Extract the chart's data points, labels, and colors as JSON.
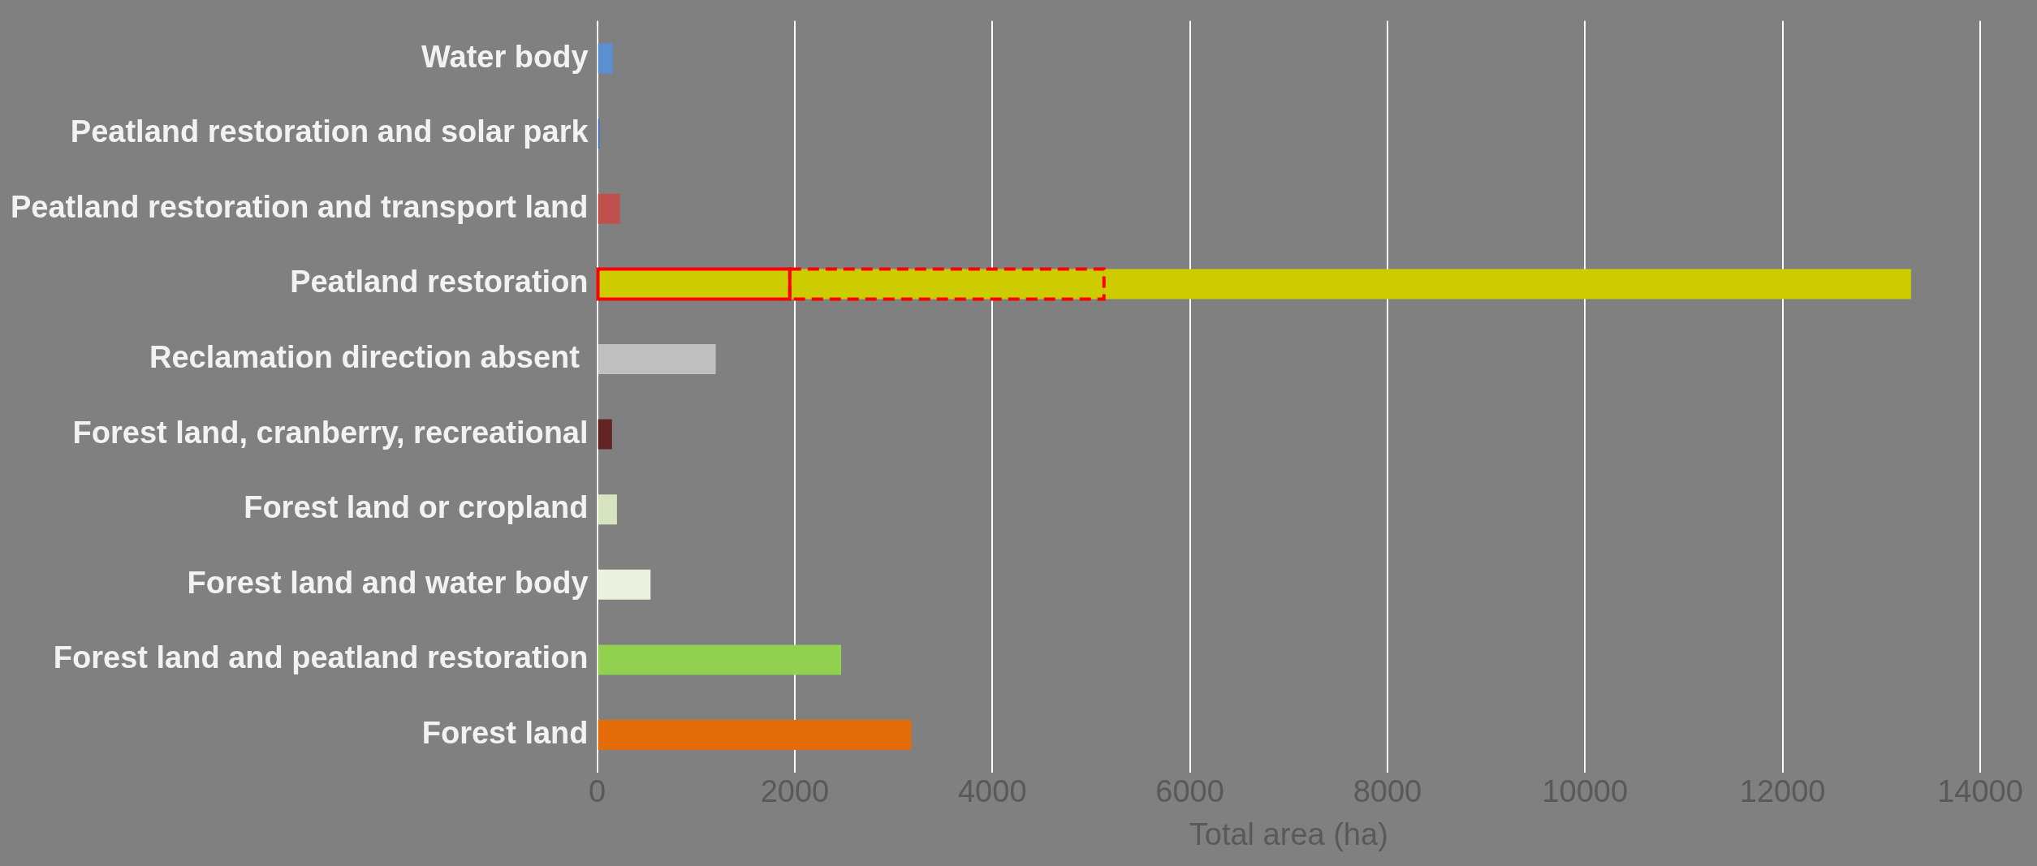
{
  "chart_data": {
    "type": "bar",
    "orientation": "horizontal",
    "stacked": true,
    "xlabel": "Total area (ha)",
    "categories": [
      "Water body",
      "Peatland restoration and solar park",
      "Peatland restoration and transport land",
      "Peatland restoration",
      "Reclamation direction absent ",
      "Forest land, cranberry, recreational",
      "Forest land or cropland",
      "Forest land and water body",
      "Forest land and peatland restoration",
      "Forest land"
    ],
    "series": [
      {
        "line_style": "solid",
        "colors": [
          "#cccc00",
          "#cccc00",
          "#cccc00",
          "#cccc00",
          "#cccc00",
          "#cccc00",
          "#cccc00",
          "#cccc00",
          "#cccc00",
          "#cccc00"
        ],
        "values": [
          null,
          null,
          null,
          1950,
          null,
          null,
          null,
          null,
          null,
          null
        ]
      },
      {
        "line_style": "dashed",
        "colors": [
          "#cccc00",
          "#cccc00",
          "#cccc00",
          "#cccc00",
          "#cccc00",
          "#cccc00",
          "#cccc00",
          "#cccc00",
          "#cccc00",
          "#cccc00"
        ],
        "values": [
          null,
          null,
          null,
          3180,
          null,
          null,
          null,
          null,
          null,
          null
        ]
      },
      {
        "colors": [
          "#5b8fd0",
          "#4472c4",
          "#c0504d",
          "#cccc00",
          "#c0c0c0",
          "#632523",
          "#d7e4bd",
          "#ebf1de",
          "#92d050",
          "#e36c09"
        ],
        "values": [
          160,
          25,
          230,
          8170,
          1200,
          150,
          200,
          540,
          2470,
          3180
        ]
      }
    ],
    "xlim": [
      0,
      14000
    ],
    "xticks": [
      0,
      2000,
      4000,
      6000,
      8000,
      10000,
      12000,
      14000
    ],
    "grid": "x",
    "legend": false
  }
}
